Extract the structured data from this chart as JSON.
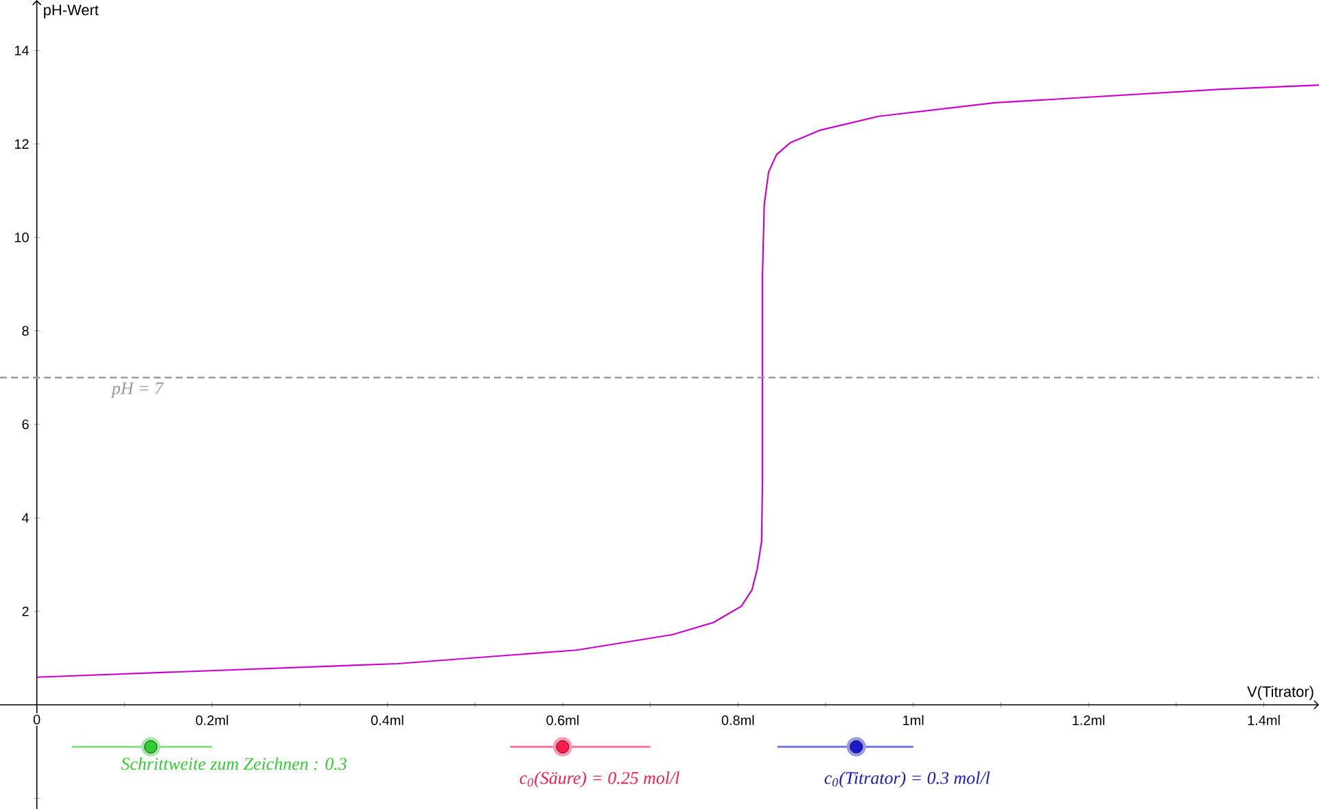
{
  "chart_data": {
    "type": "line",
    "xlabel": "V(Titrator)",
    "ylabel": "pH-Wert",
    "x": [
      0,
      0.412,
      0.616,
      0.725,
      0.772,
      0.804,
      0.816,
      0.822,
      0.827,
      0.828,
      0.828,
      0.83,
      0.835,
      0.844,
      0.86,
      0.893,
      0.96,
      1.093,
      1.352,
      1.463
    ],
    "series": [
      {
        "color": "#cc00cc",
        "values": [
          0.59,
          0.88,
          1.17,
          1.5,
          1.76,
          2.11,
          2.46,
          2.9,
          3.5,
          4.8,
          9.2,
          10.7,
          11.4,
          11.77,
          12.03,
          12.29,
          12.59,
          12.88,
          13.17,
          13.26
        ]
      }
    ],
    "xlim": [
      -0.042,
      1.463
    ],
    "ylim": [
      -2.23,
      15.08
    ],
    "xticks": [
      {
        "value": 0,
        "label": "0"
      },
      {
        "value": 0.1,
        "label": null
      },
      {
        "value": 0.2,
        "label": "0.2ml"
      },
      {
        "value": 0.3,
        "label": null
      },
      {
        "value": 0.4,
        "label": "0.4ml"
      },
      {
        "value": 0.5,
        "label": null
      },
      {
        "value": 0.6,
        "label": "0.6ml"
      },
      {
        "value": 0.7,
        "label": null
      },
      {
        "value": 0.8,
        "label": "0.8ml"
      },
      {
        "value": 0.9,
        "label": null
      },
      {
        "value": 1,
        "label": "1ml"
      },
      {
        "value": 1.1,
        "label": null
      },
      {
        "value": 1.2,
        "label": "1.2ml"
      },
      {
        "value": 1.3,
        "label": null
      },
      {
        "value": 1.4,
        "label": "1.4ml"
      }
    ],
    "yticks": [
      {
        "value": -2,
        "label": null
      },
      2,
      4,
      6,
      8,
      10,
      12,
      14
    ],
    "ref_lines": [
      {
        "axis": "y",
        "value": 7,
        "label": "pH = 7",
        "color": "#999999",
        "line_style": "dashed"
      }
    ],
    "annotations": [
      "Schrittweite zum Zeichnen : 0.3",
      "c$_{0}$(Säure) = 0.25 mol/l",
      "c$_{0}$(Titrator) = 0.3 mol/l"
    ],
    "grid": false,
    "marker": "none",
    "line_style": "solid"
  }
}
